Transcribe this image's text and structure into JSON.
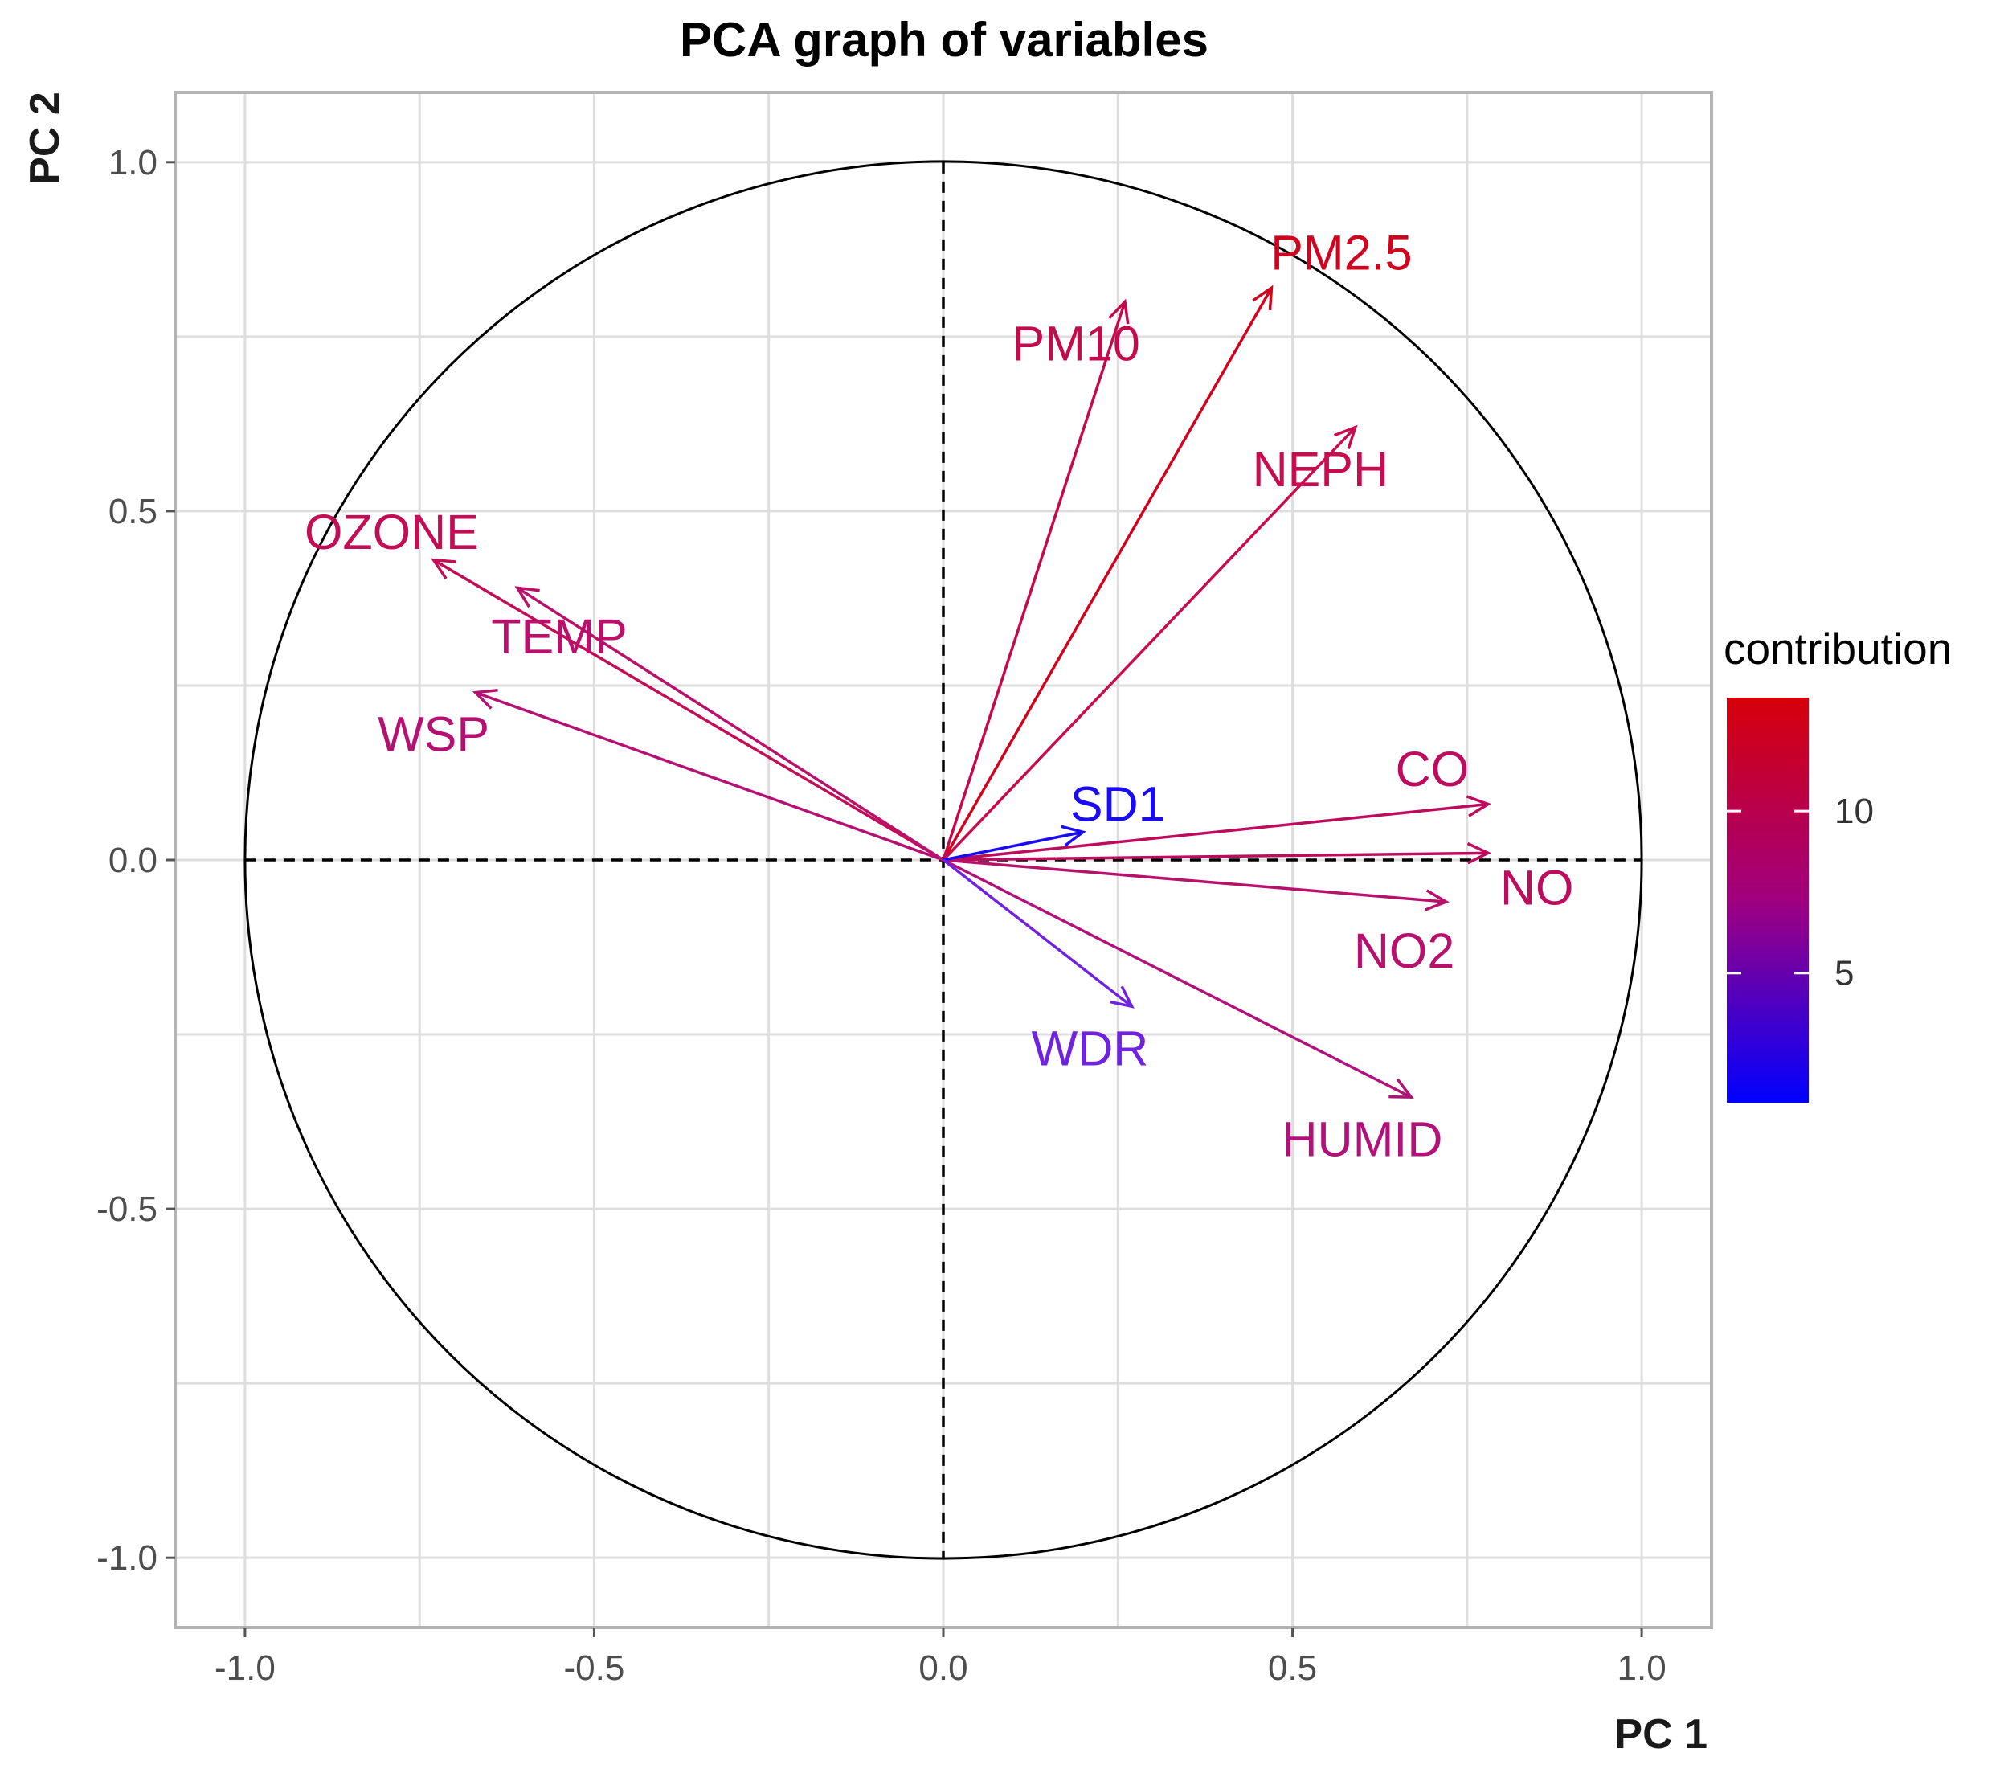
{
  "chart_data": {
    "type": "pca_variable_correlation_circle",
    "title": "PCA graph of variables",
    "xlabel": "PC 1",
    "ylabel": "PC 2",
    "xlim": [
      -1.1,
      1.1
    ],
    "ylim": [
      -1.1,
      1.1
    ],
    "x_ticks": [
      -1.0,
      -0.5,
      0.0,
      0.5,
      1.0
    ],
    "y_ticks": [
      -1.0,
      -0.5,
      0.0,
      0.5,
      1.0
    ],
    "x_tick_labels": [
      "-1.0",
      "-0.5",
      "0.0",
      "0.5",
      "1.0"
    ],
    "y_tick_labels": [
      "-1.0",
      "-0.5",
      "0.0",
      "0.5",
      "1.0"
    ],
    "grid": true,
    "unit_circle": true,
    "legend": {
      "title": "contribution",
      "position": "right",
      "range": [
        1,
        13.5
      ],
      "ticks": [
        5,
        10
      ],
      "tick_labels": [
        "5",
        "10"
      ],
      "color_low": "#0000ff",
      "color_mid": "#a0007f",
      "color_high": "#d6000a"
    },
    "variables": [
      {
        "name": "PM2.5",
        "x": 0.47,
        "y": 0.82,
        "contribution": 13.0,
        "color": "#d1021e",
        "label_x": 0.57,
        "label_y": 0.87
      },
      {
        "name": "PM10",
        "x": 0.26,
        "y": 0.8,
        "contribution": 11.2,
        "color": "#c40a4c",
        "label_x": 0.19,
        "label_y": 0.74
      },
      {
        "name": "NEPH",
        "x": 0.59,
        "y": 0.62,
        "contribution": 10.5,
        "color": "#c70c4f",
        "label_x": 0.54,
        "label_y": 0.56
      },
      {
        "name": "OZONE",
        "x": -0.73,
        "y": 0.43,
        "contribution": 10.3,
        "color": "#c20e55",
        "label_x": -0.79,
        "label_y": 0.47
      },
      {
        "name": "TEMP",
        "x": -0.61,
        "y": 0.39,
        "contribution": 9.0,
        "color": "#b9116a",
        "label_x": -0.55,
        "label_y": 0.32
      },
      {
        "name": "WSP",
        "x": -0.67,
        "y": 0.24,
        "contribution": 8.0,
        "color": "#b41172",
        "label_x": -0.73,
        "label_y": 0.18
      },
      {
        "name": "CO",
        "x": 0.78,
        "y": 0.08,
        "contribution": 10.0,
        "color": "#bd0b5e",
        "label_x": 0.7,
        "label_y": 0.13
      },
      {
        "name": "NO",
        "x": 0.78,
        "y": 0.01,
        "contribution": 10.0,
        "color": "#bd0b5e",
        "label_x": 0.85,
        "label_y": -0.04
      },
      {
        "name": "NO2",
        "x": 0.72,
        "y": -0.06,
        "contribution": 8.8,
        "color": "#b8106d",
        "label_x": 0.66,
        "label_y": -0.13
      },
      {
        "name": "HUMID",
        "x": 0.67,
        "y": -0.34,
        "contribution": 7.9,
        "color": "#b01279",
        "label_x": 0.6,
        "label_y": -0.4
      },
      {
        "name": "SD1",
        "x": 0.2,
        "y": 0.04,
        "contribution": 1.2,
        "color": "#1a0bf5",
        "label_x": 0.25,
        "label_y": 0.08
      },
      {
        "name": "WDR",
        "x": 0.27,
        "y": -0.21,
        "contribution": 3.6,
        "color": "#6f23e0",
        "label_x": 0.21,
        "label_y": -0.27
      }
    ]
  }
}
